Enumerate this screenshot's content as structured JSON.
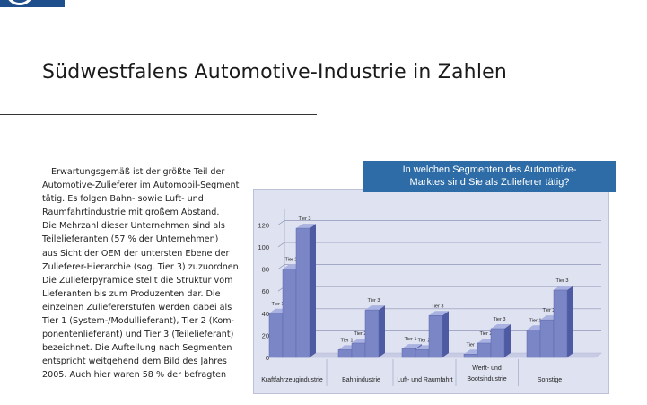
{
  "page": {
    "title": "Südwestfalens Automotive-Industrie in Zahlen"
  },
  "body_text": {
    "lines": [
      "Erwartungsgemäß ist der größte Teil der",
      "Automotive-Zulieferer im Automobil-Segment",
      "tätig. Es folgen Bahn- sowie Luft- und",
      "Raumfahrtindustrie mit großem Abstand.",
      "Die Mehrzahl dieser Unternehmen sind als",
      "Teilelieferanten (57 % der Unternehmen)",
      "aus Sicht der OEM der untersten Ebene der",
      "Zulieferer-Hierarchie (sog. Tier 3) zuzuordnen.",
      "Die Zulieferpyramide stellt die Struktur vom",
      "Lieferanten bis zum Produzenten dar. Die",
      "einzelnen Zuliefererstufen werden dabei als",
      "Tier 1 (System-/Modullieferant), Tier 2 (Kom-",
      "ponentenlieferant) und Tier 3 (Teilelieferant)",
      "bezeichnet. Die Aufteilung nach Segmenten",
      "entspricht weitgehend dem Bild des Jahres",
      "2005. Auch hier waren 58 % der befragten"
    ]
  },
  "chart_data": {
    "type": "bar",
    "title_lines": [
      "In welchen Segmenten des Automotive-",
      "Marktes sind Sie als Zulieferer tätig?"
    ],
    "categories": [
      {
        "lines": [
          "Kraftfahrzeugindustrie"
        ]
      },
      {
        "lines": [
          "Bahnindustrie"
        ]
      },
      {
        "lines": [
          "Luft- und Raumfahrt"
        ]
      },
      {
        "lines": [
          "Werft- und",
          "Bootsindustrie"
        ]
      },
      {
        "lines": [
          "Sonstige"
        ]
      }
    ],
    "series": [
      {
        "name": "Tier 1",
        "values": [
          40,
          7,
          8,
          3,
          25
        ]
      },
      {
        "name": "Tier 2",
        "values": [
          80,
          13,
          7,
          13,
          34
        ]
      },
      {
        "name": "Tier 3",
        "values": [
          117,
          43,
          38,
          26,
          61
        ]
      }
    ],
    "ylim": [
      0,
      130
    ],
    "yticks": [
      "0",
      "20",
      "40",
      "60",
      "80",
      "100",
      "120"
    ],
    "grid": true,
    "colors": {
      "bar_front": "#7b86c6",
      "bar_side": "#4e5aa2",
      "bar_top": "#a9b2e0",
      "floor": "#c7cbe3",
      "panel": "#dfe2f0",
      "header": "#2d6ca6"
    }
  }
}
